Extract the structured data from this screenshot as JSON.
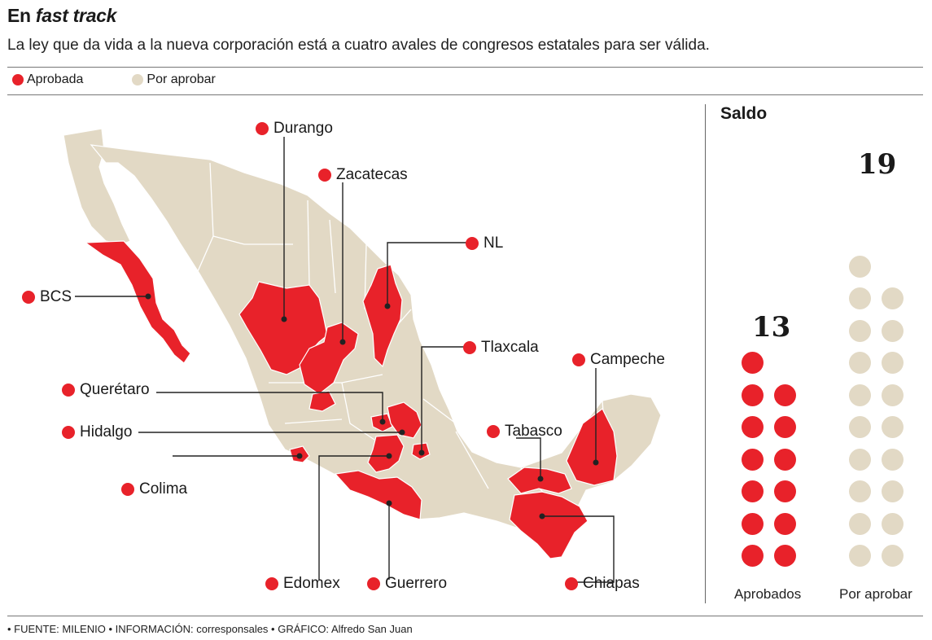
{
  "header": {
    "title_plain": "En ",
    "title_italic": "fast track",
    "subtitle": "La ley que da vida a la nueva corporación está a cuatro avales de congresos estatales para ser válida."
  },
  "legend": {
    "approved_label": "Aprobada",
    "pending_label": "Por aprobar",
    "approved_color": "#e8222a",
    "pending_color": "#e2d9c5"
  },
  "map": {
    "states": {
      "durango": "Durango",
      "zacatecas": "Zacatecas",
      "nl": "NL",
      "bcs": "BCS",
      "tlaxcala": "Tlaxcala",
      "campeche": "Campeche",
      "queretaro": "Querétaro",
      "hidalgo": "Hidalgo",
      "tabasco": "Tabasco",
      "colima": "Colima",
      "edomex": "Edomex",
      "guerrero": "Guerrero",
      "chiapas": "Chiapas"
    }
  },
  "saldo": {
    "title": "Saldo",
    "approved_count": "13",
    "pending_count": "19",
    "approved_label": "Aprobados",
    "pending_label": "Por aprobar",
    "approved_value": 13,
    "pending_value": 19
  },
  "footer": {
    "text": "• FUENTE: MILENIO   • INFORMACIÓN: corresponsales • GRÁFICO: Alfredo San Juan"
  }
}
